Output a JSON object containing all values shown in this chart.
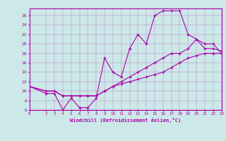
{
  "xlabel": "Windchill (Refroidissement éolien,°C)",
  "bg_color": "#cce8e8",
  "line_color": "#aa00aa",
  "xlim": [
    0,
    23
  ],
  "ylim": [
    6,
    27.5
  ],
  "xticks": [
    0,
    2,
    3,
    4,
    5,
    6,
    7,
    8,
    9,
    10,
    11,
    12,
    13,
    14,
    15,
    16,
    17,
    18,
    19,
    20,
    21,
    22,
    23
  ],
  "yticks": [
    6,
    8,
    10,
    12,
    14,
    16,
    18,
    20,
    22,
    24,
    26
  ],
  "line1_x": [
    0,
    2,
    3,
    4,
    5,
    6,
    7,
    8,
    9,
    10,
    11,
    12,
    13,
    14,
    15,
    16,
    17,
    18,
    19,
    20,
    21,
    22,
    23
  ],
  "line1_y": [
    11,
    9.5,
    9.5,
    6.0,
    8.5,
    6.5,
    6.5,
    8.5,
    17,
    14,
    13,
    19,
    22,
    20,
    26,
    27,
    27,
    27,
    22,
    21,
    20,
    20,
    18
  ],
  "line2_x": [
    0,
    2,
    3,
    4,
    5,
    6,
    7,
    8,
    9,
    10,
    11,
    12,
    13,
    14,
    15,
    16,
    17,
    18,
    19,
    20,
    21,
    22,
    23
  ],
  "line2_y": [
    11,
    10,
    10,
    9,
    9,
    9,
    9,
    9,
    10,
    11,
    12,
    13,
    14,
    15,
    16,
    17,
    18,
    18,
    19,
    21,
    19,
    19,
    18.5
  ],
  "line3_x": [
    0,
    2,
    3,
    4,
    5,
    6,
    7,
    8,
    9,
    10,
    11,
    12,
    13,
    14,
    15,
    16,
    17,
    18,
    19,
    20,
    21,
    22,
    23
  ],
  "line3_y": [
    11,
    10,
    10,
    9,
    9,
    9,
    9,
    9,
    10,
    11,
    11.5,
    12,
    12.5,
    13,
    13.5,
    14,
    15,
    16,
    17,
    17.5,
    18,
    18,
    18
  ]
}
